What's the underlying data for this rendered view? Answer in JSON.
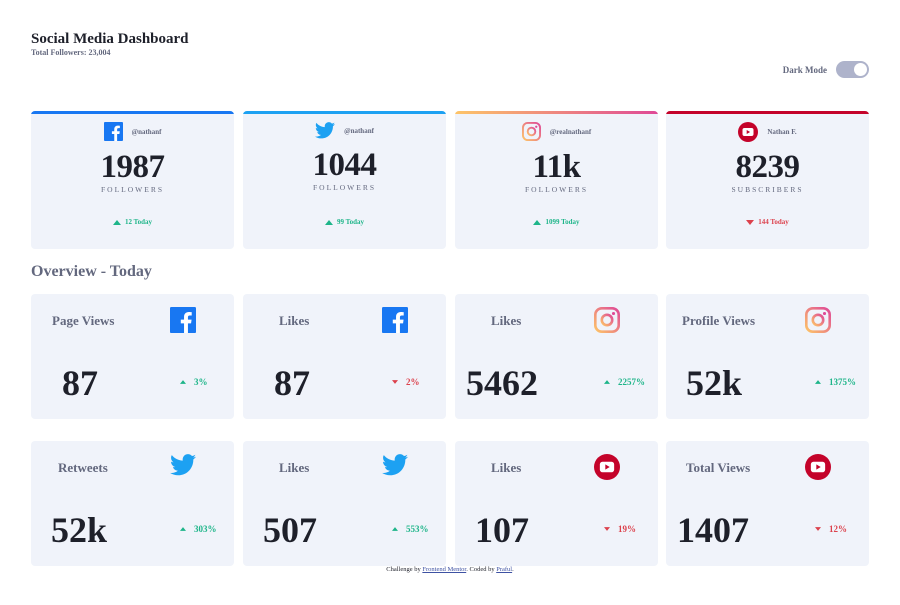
{
  "header": {
    "title": "Social Media Dashboard",
    "total_followers": "Total Followers: 23,004",
    "dark_mode_label": "Dark Mode",
    "dark_mode_on": false
  },
  "colors": {
    "facebook": "#1877f2",
    "twitter": "#1da1f2",
    "instagram_start": "#fdc468",
    "instagram_end": "#df4996",
    "youtube": "#c4032a",
    "up": "#1eb589",
    "down": "#dc414c"
  },
  "top_cards": [
    {
      "platform": "facebook",
      "icon": "facebook-icon",
      "handle": "@nathanf",
      "count": "1987",
      "unit": "FOLLOWERS",
      "today": "12 Today",
      "trend": "up"
    },
    {
      "platform": "twitter",
      "icon": "twitter-icon",
      "handle": "@nathanf",
      "count": "1044",
      "unit": "FOLLOWERS",
      "today": "99 Today",
      "trend": "up"
    },
    {
      "platform": "instagram",
      "icon": "instagram-icon",
      "handle": "@realnathanf",
      "count": "11k",
      "unit": "FOLLOWERS",
      "today": "1099 Today",
      "trend": "up"
    },
    {
      "platform": "youtube",
      "icon": "youtube-icon",
      "handle": "Nathan F.",
      "count": "8239",
      "unit": "SUBSCRIBERS",
      "today": "144 Today",
      "trend": "down"
    }
  ],
  "overview": {
    "title": "Overview - Today",
    "cards": [
      {
        "label": "Page Views",
        "icon": "facebook-icon",
        "value": "87",
        "change": "3%",
        "trend": "up"
      },
      {
        "label": "Likes",
        "icon": "facebook-icon",
        "value": "87",
        "change": "2%",
        "trend": "down"
      },
      {
        "label": "Likes",
        "icon": "instagram-icon",
        "value": "5462",
        "change": "2257%",
        "trend": "up"
      },
      {
        "label": "Profile Views",
        "icon": "instagram-icon",
        "value": "52k",
        "change": "1375%",
        "trend": "up"
      },
      {
        "label": "Retweets",
        "icon": "twitter-icon",
        "value": "52k",
        "change": "303%",
        "trend": "up"
      },
      {
        "label": "Likes",
        "icon": "twitter-icon",
        "value": "507",
        "change": "553%",
        "trend": "up"
      },
      {
        "label": "Likes",
        "icon": "youtube-icon",
        "value": "107",
        "change": "19%",
        "trend": "down"
      },
      {
        "label": "Total Views",
        "icon": "youtube-icon",
        "value": "1407",
        "change": "12%",
        "trend": "down"
      }
    ]
  },
  "footer": {
    "prefix": "Challenge by ",
    "link1": "Frontend Mentor",
    "middle": ". Coded by ",
    "link2": "Praful",
    "suffix": "."
  }
}
